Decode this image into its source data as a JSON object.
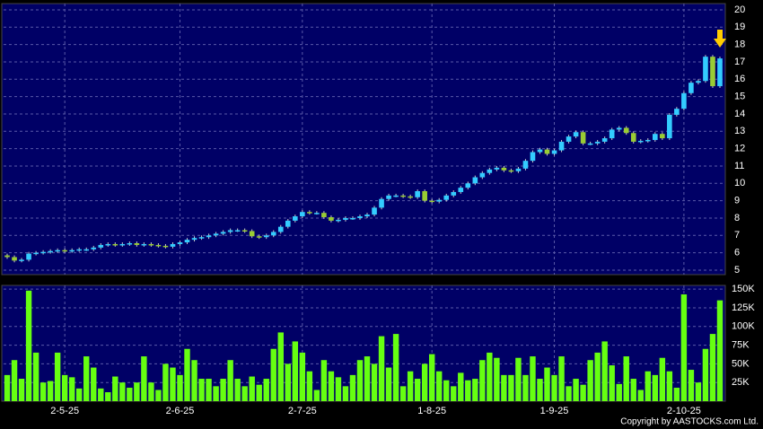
{
  "chart_data": {
    "type": "candlestick",
    "categories": [
      null,
      null,
      null,
      null,
      null,
      null,
      null,
      null,
      "2-5-25",
      null,
      null,
      null,
      null,
      null,
      null,
      null,
      null,
      null,
      null,
      null,
      null,
      null,
      null,
      null,
      "2-6-25",
      null,
      null,
      null,
      null,
      null,
      null,
      null,
      null,
      null,
      null,
      null,
      null,
      null,
      null,
      null,
      null,
      "2-7-25",
      null,
      null,
      null,
      null,
      null,
      null,
      null,
      null,
      null,
      null,
      null,
      null,
      null,
      null,
      null,
      null,
      null,
      "1-8-25",
      null,
      null,
      null,
      null,
      null,
      null,
      null,
      null,
      null,
      null,
      null,
      null,
      null,
      null,
      null,
      null,
      "1-9-25",
      null,
      null,
      null,
      null,
      null,
      null,
      null,
      null,
      null,
      null,
      null,
      null,
      null,
      null,
      null,
      null,
      null,
      "2-10-25",
      null,
      null,
      null,
      null,
      null
    ],
    "open": [
      5.85,
      5.75,
      5.55,
      5.6,
      5.95,
      6.0,
      6.05,
      6.1,
      6.15,
      6.1,
      6.15,
      6.2,
      6.2,
      6.3,
      6.45,
      6.5,
      6.45,
      6.5,
      6.55,
      6.45,
      6.5,
      6.45,
      6.4,
      6.35,
      6.5,
      6.6,
      6.75,
      6.85,
      6.9,
      7.0,
      7.1,
      7.2,
      7.3,
      7.3,
      7.25,
      6.95,
      6.9,
      7.0,
      7.2,
      7.5,
      7.85,
      8.1,
      8.35,
      8.3,
      8.3,
      8.05,
      7.85,
      7.9,
      8.0,
      8.0,
      8.1,
      8.2,
      8.6,
      9.1,
      9.3,
      9.3,
      9.25,
      9.2,
      9.55,
      9.0,
      8.95,
      9.05,
      9.3,
      9.5,
      9.75,
      10.0,
      10.35,
      10.6,
      10.8,
      10.9,
      10.75,
      10.7,
      10.85,
      11.3,
      11.8,
      11.95,
      11.7,
      11.9,
      12.4,
      12.7,
      12.95,
      12.3,
      12.3,
      12.4,
      12.6,
      13.1,
      13.2,
      12.9,
      12.4,
      12.45,
      12.5,
      12.85,
      12.6,
      13.95,
      14.3,
      15.2,
      15.8,
      15.9,
      17.3,
      15.6
    ],
    "high": [
      5.95,
      5.85,
      5.7,
      6.05,
      6.1,
      6.15,
      6.2,
      6.25,
      6.25,
      6.25,
      6.3,
      6.3,
      6.4,
      6.55,
      6.6,
      6.6,
      6.6,
      6.65,
      6.65,
      6.6,
      6.6,
      6.55,
      6.5,
      6.6,
      6.7,
      6.85,
      6.95,
      7.0,
      7.1,
      7.2,
      7.3,
      7.4,
      7.4,
      7.4,
      7.35,
      7.05,
      7.1,
      7.3,
      7.6,
      7.95,
      8.2,
      8.45,
      8.45,
      8.4,
      8.4,
      8.15,
      8.0,
      8.1,
      8.1,
      8.2,
      8.3,
      8.7,
      9.2,
      9.4,
      9.4,
      9.4,
      9.35,
      9.65,
      9.65,
      9.1,
      9.15,
      9.4,
      9.6,
      9.85,
      10.1,
      10.45,
      10.7,
      10.9,
      11.0,
      11.0,
      10.85,
      10.95,
      11.4,
      11.9,
      12.05,
      12.05,
      12.0,
      12.5,
      12.8,
      13.05,
      13.05,
      12.4,
      12.5,
      12.7,
      13.2,
      13.3,
      13.3,
      13.0,
      12.55,
      12.6,
      12.95,
      12.95,
      14.05,
      14.4,
      15.3,
      15.9,
      16.0,
      17.4,
      17.4,
      17.3
    ],
    "low": [
      5.65,
      5.45,
      5.45,
      5.5,
      5.85,
      5.9,
      5.95,
      6.0,
      6.0,
      6.0,
      6.05,
      6.1,
      6.1,
      6.2,
      6.35,
      6.35,
      6.35,
      6.4,
      6.35,
      6.35,
      6.35,
      6.3,
      6.25,
      6.25,
      6.4,
      6.5,
      6.65,
      6.75,
      6.8,
      6.9,
      7.0,
      7.1,
      7.2,
      7.15,
      6.85,
      6.8,
      6.8,
      6.9,
      7.1,
      7.4,
      7.75,
      8.0,
      8.2,
      8.2,
      7.95,
      7.75,
      7.75,
      7.8,
      7.9,
      7.9,
      8.0,
      8.1,
      8.5,
      9.0,
      9.2,
      9.15,
      9.1,
      9.1,
      8.9,
      8.85,
      8.85,
      8.95,
      9.2,
      9.4,
      9.65,
      9.9,
      10.25,
      10.5,
      10.7,
      10.65,
      10.6,
      10.6,
      10.75,
      11.2,
      11.7,
      11.6,
      11.6,
      11.8,
      12.3,
      12.6,
      12.2,
      12.2,
      12.2,
      12.3,
      12.5,
      13.0,
      12.8,
      12.3,
      12.3,
      12.35,
      12.4,
      12.5,
      12.5,
      13.85,
      14.2,
      15.1,
      15.7,
      15.8,
      15.5,
      15.5
    ],
    "close": [
      5.75,
      5.55,
      5.6,
      5.95,
      6.0,
      6.05,
      6.1,
      6.15,
      6.1,
      6.15,
      6.2,
      6.2,
      6.3,
      6.45,
      6.5,
      6.45,
      6.5,
      6.55,
      6.45,
      6.5,
      6.45,
      6.4,
      6.35,
      6.5,
      6.6,
      6.75,
      6.85,
      6.9,
      7.0,
      7.1,
      7.2,
      7.3,
      7.3,
      7.25,
      6.95,
      6.9,
      7.0,
      7.2,
      7.5,
      7.85,
      8.1,
      8.35,
      8.3,
      8.3,
      8.05,
      7.85,
      7.9,
      8.0,
      8.0,
      8.1,
      8.2,
      8.6,
      9.1,
      9.3,
      9.3,
      9.25,
      9.2,
      9.55,
      9.0,
      8.95,
      9.05,
      9.3,
      9.5,
      9.75,
      10.0,
      10.35,
      10.6,
      10.8,
      10.9,
      10.75,
      10.7,
      10.85,
      11.3,
      11.8,
      11.95,
      11.7,
      11.9,
      12.4,
      12.7,
      12.95,
      12.3,
      12.3,
      12.4,
      12.6,
      13.1,
      13.2,
      12.9,
      12.4,
      12.45,
      12.5,
      12.85,
      12.6,
      13.95,
      14.3,
      15.2,
      15.8,
      15.9,
      17.3,
      15.6,
      17.2
    ],
    "volume": [
      35000,
      55000,
      30000,
      148000,
      65000,
      25000,
      27000,
      65000,
      35000,
      32000,
      17000,
      60000,
      45000,
      17000,
      12000,
      33000,
      25000,
      18000,
      25000,
      60000,
      25000,
      15000,
      50000,
      45000,
      35000,
      70000,
      55000,
      30000,
      30000,
      20000,
      30000,
      55000,
      30000,
      20000,
      33000,
      22000,
      30000,
      70000,
      92000,
      50000,
      80000,
      65000,
      40000,
      15000,
      55000,
      40000,
      32000,
      20000,
      35000,
      55000,
      60000,
      50000,
      87000,
      45000,
      90000,
      20000,
      40000,
      30000,
      50000,
      63000,
      40000,
      28000,
      20000,
      38000,
      28000,
      30000,
      55000,
      65000,
      58000,
      35000,
      35000,
      58000,
      35000,
      60000,
      30000,
      45000,
      35000,
      60000,
      20000,
      30000,
      22000,
      55000,
      65000,
      80000,
      48000,
      23000,
      60000,
      30000,
      15000,
      40000,
      35000,
      58000,
      40000,
      18000,
      143000,
      42000,
      25000,
      70000,
      90000,
      135000
    ],
    "up_color": "#33ccff",
    "down_color": "#99cc33",
    "volume_color": "#66ff11",
    "ylim": [
      4.74,
      20.36
    ],
    "yticks": [
      5,
      6,
      7,
      8,
      9,
      10,
      11,
      12,
      13,
      14,
      15,
      16,
      17,
      18,
      19,
      20
    ],
    "volume_ylim": [
      0,
      155000
    ],
    "volume_yticks": [
      {
        "value": 25000,
        "label": "25K"
      },
      {
        "value": 50000,
        "label": "50K"
      },
      {
        "value": 75000,
        "label": "75K"
      },
      {
        "value": 100000,
        "label": "100K"
      },
      {
        "value": 125000,
        "label": "125K"
      },
      {
        "value": 150000,
        "label": "150K"
      }
    ],
    "grid": true,
    "footer": "Copyright by AASTOCKS.com Ltd."
  }
}
